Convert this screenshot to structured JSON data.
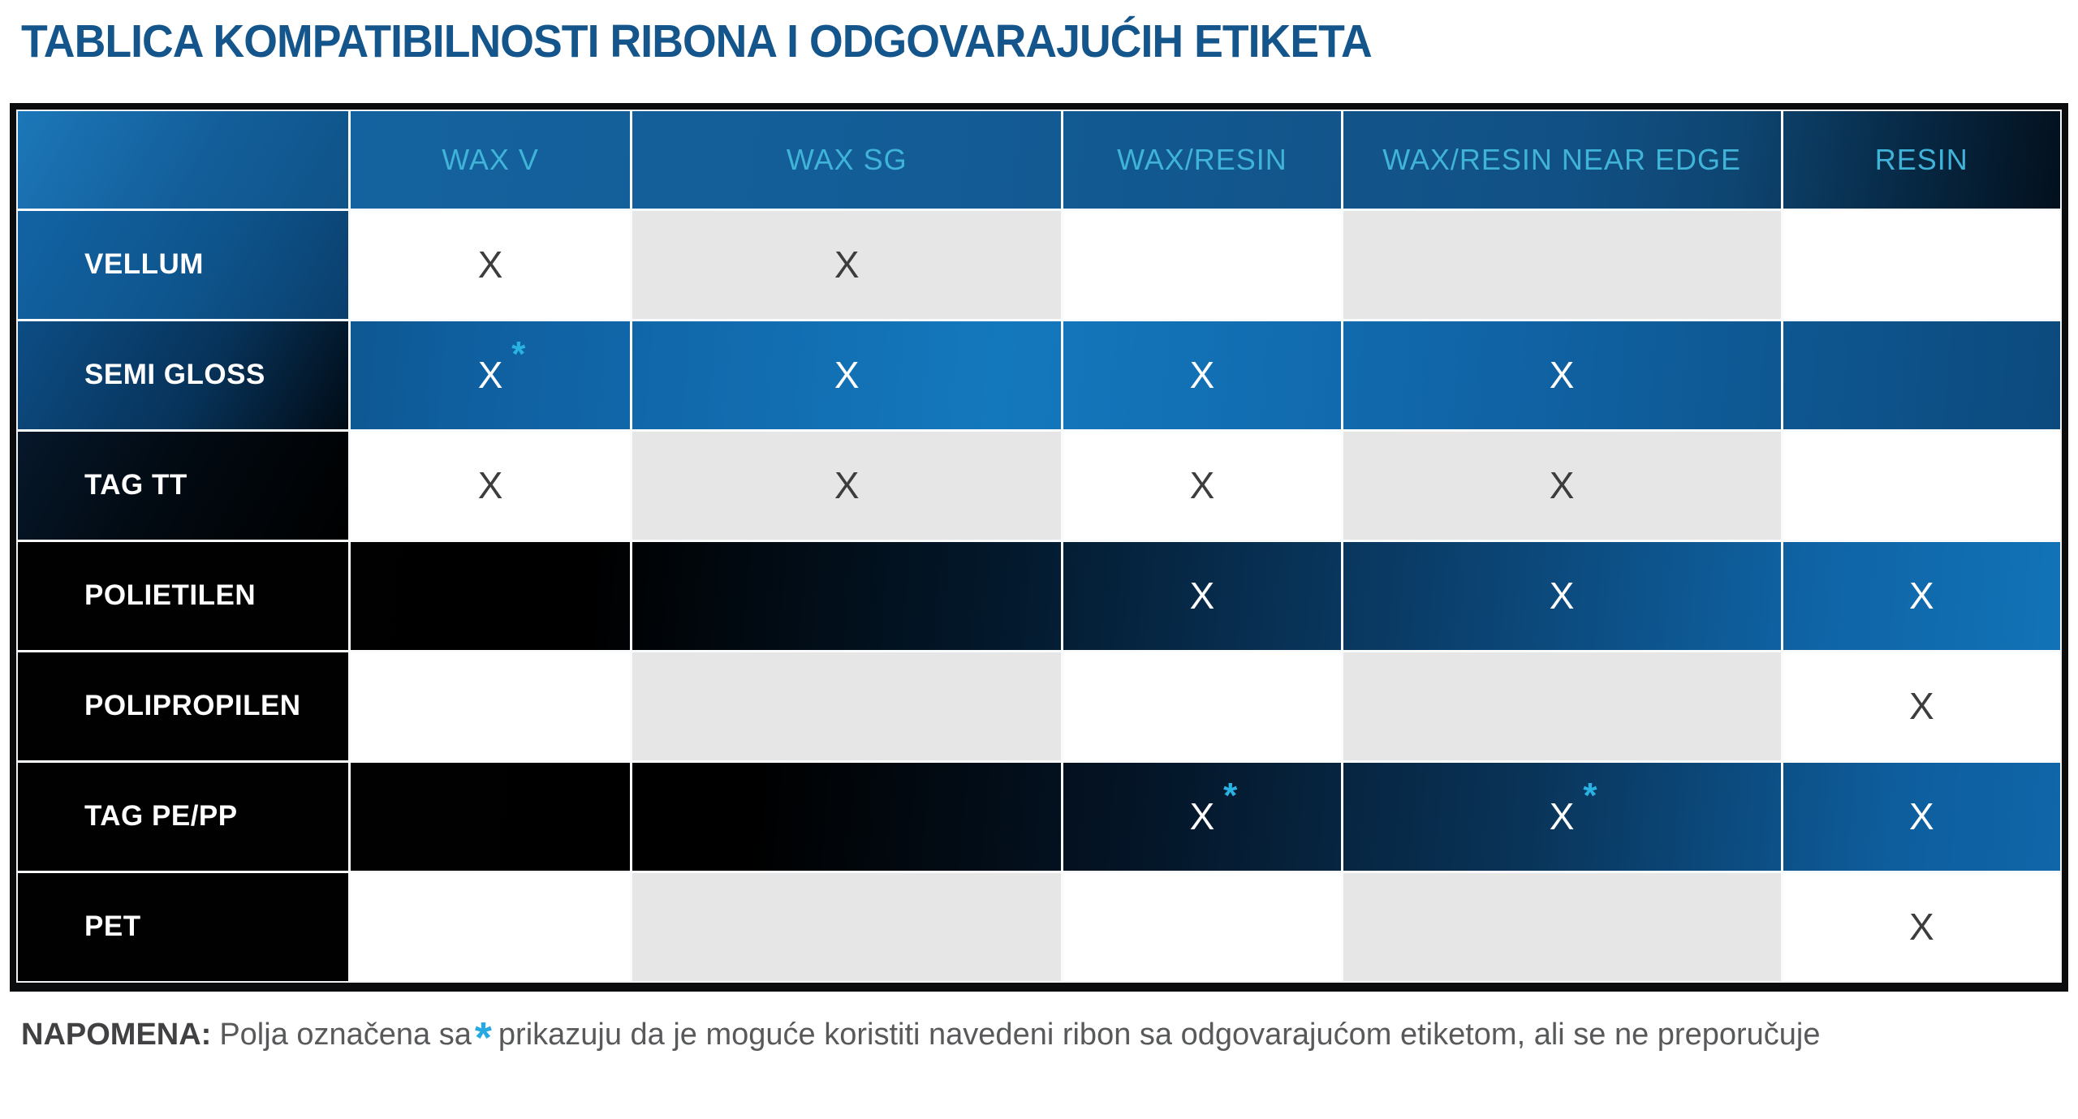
{
  "page_title": "TABLICA KOMPATIBILNOSTI RIBONA I ODGOVARAJUĆIH ETIKETA",
  "table": {
    "corner_label": "",
    "columns": [
      "WAX V",
      "WAX SG",
      "WAX/RESIN",
      "WAX/RESIN NEAR EDGE",
      "RESIN"
    ],
    "rows": [
      {
        "label": "VELLUM",
        "theme": "light",
        "cells": [
          "X",
          "X",
          "",
          "",
          ""
        ]
      },
      {
        "label": "SEMI GLOSS",
        "theme": "blue",
        "cells": [
          "X*",
          "X",
          "X",
          "X",
          ""
        ]
      },
      {
        "label": "TAG TT",
        "theme": "light",
        "cells": [
          "X",
          "X",
          "X",
          "X",
          ""
        ]
      },
      {
        "label": "POLIETILEN",
        "theme": "dark",
        "cells": [
          "",
          "",
          "X",
          "X",
          "X"
        ]
      },
      {
        "label": "POLIPROPILEN",
        "theme": "light",
        "cells": [
          "",
          "",
          "",
          "",
          "X"
        ]
      },
      {
        "label": "TAG PE/PP",
        "theme": "dark",
        "cells": [
          "",
          "",
          "X*",
          "X*",
          "X"
        ]
      },
      {
        "label": "PET",
        "theme": "light",
        "cells": [
          "",
          "",
          "",
          "",
          "X"
        ]
      }
    ],
    "mark_glyph": "X",
    "star_glyph": "*"
  },
  "note": {
    "label": "NAPOMENA:",
    "before_star": "Polja označena sa",
    "star": "*",
    "after_star": "prikazuju da je moguće koristiti navedeni ribon sa odgovarajućom etiketom, ali se ne preporučuje"
  },
  "colors": {
    "title_blue": "#14568C",
    "header_text_cyan": "#3FB4D8",
    "accent_star_cyan": "#27AAE1",
    "table_blue_mid": "#1172B5",
    "dark_navy": "#03101D",
    "cell_gray": "#E6E6E6",
    "note_text_gray": "#58595B"
  }
}
